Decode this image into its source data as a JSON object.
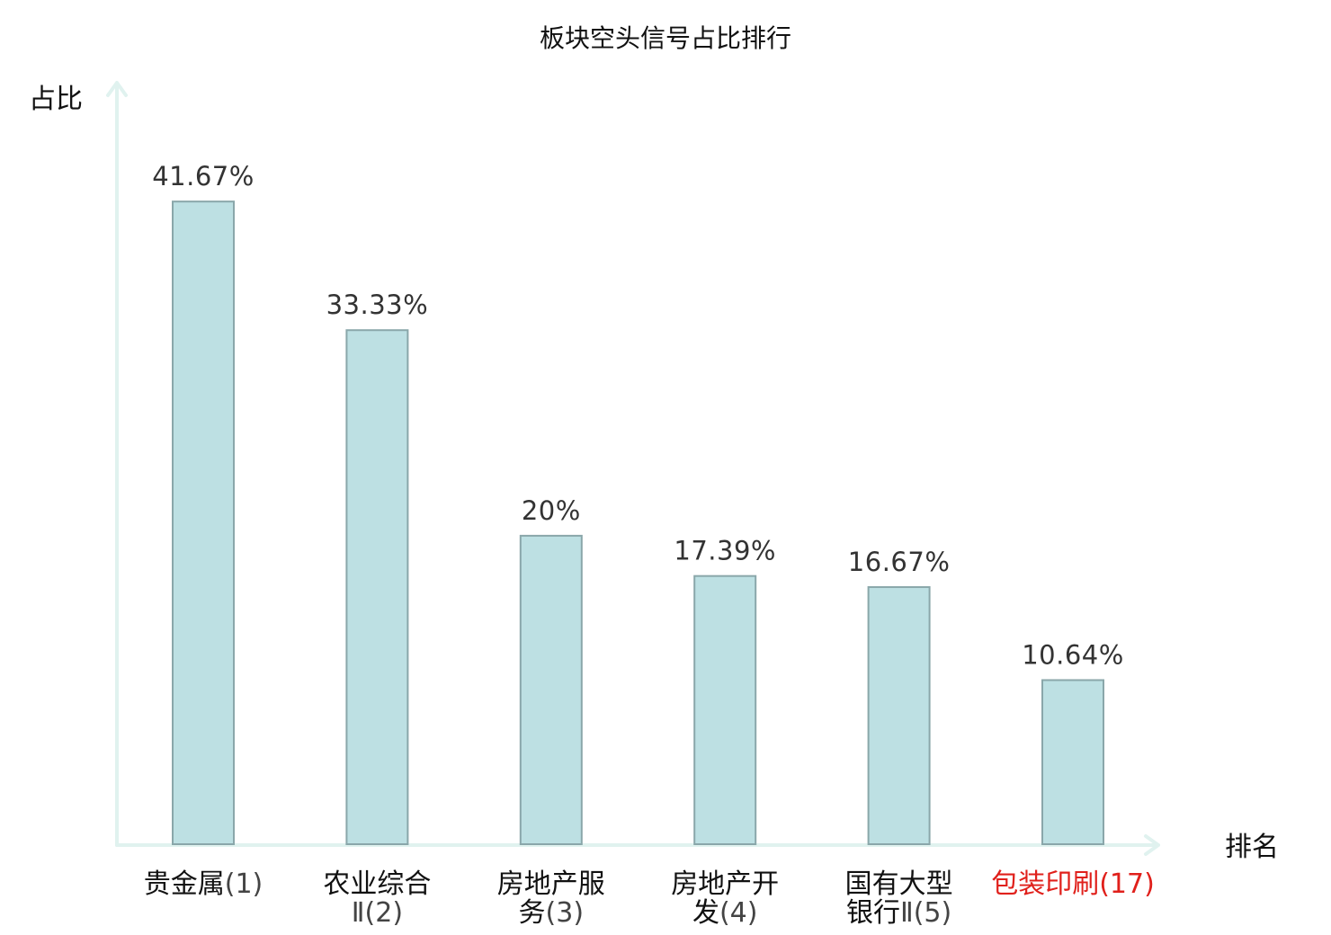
{
  "chart_data": {
    "type": "bar",
    "title": "板块空头信号占比排行",
    "ylabel": "占比",
    "xlabel": "排名",
    "ylim": [
      0,
      48.5
    ],
    "grid": false,
    "legend": "none",
    "colors": {
      "bar_fill": "#bde0e3",
      "bar_stroke": "#8aa7aa",
      "axis": "#e0f2ef",
      "highlight_label": "#e0201b"
    },
    "categories": [
      {
        "lines": [
          {
            "name": "贵金属",
            "rank": "(1)"
          }
        ],
        "highlight": false
      },
      {
        "lines": [
          {
            "name": "农业综合",
            "rank": ""
          },
          {
            "name": "",
            "rank": "Ⅱ(2)"
          }
        ],
        "highlight": false
      },
      {
        "lines": [
          {
            "name": "房地产服",
            "rank": ""
          },
          {
            "name": "务",
            "rank": "(3)"
          }
        ],
        "highlight": false
      },
      {
        "lines": [
          {
            "name": "房地产开",
            "rank": ""
          },
          {
            "name": "发",
            "rank": "(4)"
          }
        ],
        "highlight": false
      },
      {
        "lines": [
          {
            "name": "国有大型",
            "rank": ""
          },
          {
            "name": "银行",
            "rank": "Ⅱ(5)"
          }
        ],
        "highlight": false
      },
      {
        "lines": [
          {
            "name": "包装印刷",
            "rank": "(17)"
          }
        ],
        "highlight": true
      }
    ],
    "values": [
      41.67,
      33.33,
      20,
      17.39,
      16.67,
      10.64
    ],
    "value_labels": [
      "41.67%",
      "33.33%",
      "20%",
      "17.39%",
      "16.67%",
      "10.64%"
    ]
  }
}
